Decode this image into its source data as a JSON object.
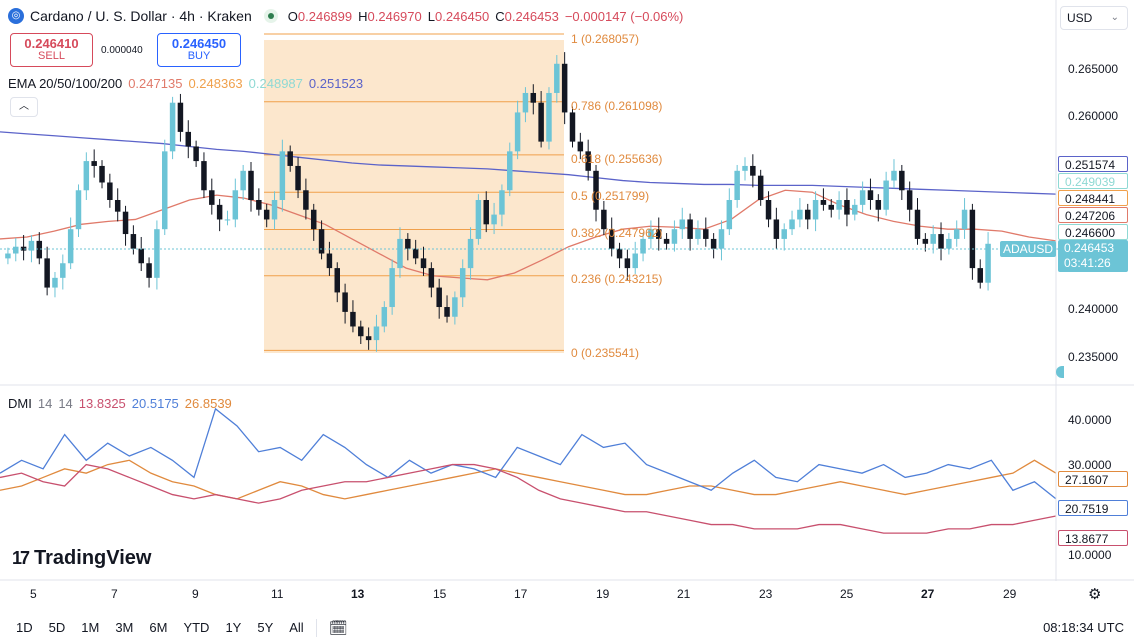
{
  "header": {
    "title": "Cardano / U. S. Dollar · 4h · Kraken",
    "o_label": "O",
    "o_value": "0.246899",
    "h_label": "H",
    "h_value": "0.246970",
    "l_label": "L",
    "l_value": "0.246450",
    "c_label": "C",
    "c_value": "0.246453",
    "change": "−0.000147 (−0.06%)",
    "currency": "USD"
  },
  "trade": {
    "sell_price": "0.246410",
    "sell_label": "SELL",
    "spread": "0.000040",
    "buy_price": "0.246450",
    "buy_label": "BUY"
  },
  "ema_legend": {
    "label": "EMA 20/50/100/200",
    "v20": "0.247135",
    "v50": "0.248363",
    "v100": "0.248987",
    "v200": "0.251523"
  },
  "dmi_legend": {
    "label": "DMI",
    "p1": "14",
    "p2": "14",
    "plus": "13.8325",
    "minus": "20.5175",
    "adx": "26.8539"
  },
  "price_axis": {
    "labels": [
      "0.265000",
      "0.260000",
      "0.240000",
      "0.235000"
    ],
    "tags": {
      "ema200": "0.251574",
      "ema100": "0.249039",
      "ema50": "0.248441",
      "ema20": "0.247206",
      "mid": "0.246600",
      "symbol": "ADAUSD",
      "last": "0.246453",
      "countdown": "03:41:26"
    }
  },
  "dmi_axis": {
    "labels": [
      "40.0000",
      "30.0000",
      "10.0000"
    ],
    "tags": {
      "adx": "27.1607",
      "minus": "20.7519",
      "plus": "13.8677"
    }
  },
  "fib_labels": [
    "1 (0.268057)",
    "0.786 (0.261098)",
    "0.618 (0.255636)",
    "0.5 (0.251799)",
    "0.382 (0.247962)",
    "0.236 (0.243215)",
    "0 (0.235541)"
  ],
  "time_axis": [
    "5",
    "7",
    "9",
    "11",
    "13",
    "15",
    "17",
    "19",
    "21",
    "23",
    "25",
    "27",
    "29"
  ],
  "bottom": {
    "timeframes": [
      "1D",
      "5D",
      "1M",
      "3M",
      "6M",
      "YTD",
      "1Y",
      "5Y",
      "All"
    ],
    "clock": "08:18:34 UTC"
  },
  "brand": {
    "name": "TradingView"
  },
  "colors": {
    "up": "#6cc4d6",
    "down": "#131722",
    "ema20": "#e07a6a",
    "ema50": "#f2b37b",
    "ema100": "#8fd9d4",
    "ema200": "#5b63c9",
    "fib_zone": "#fbe3c4",
    "fib_line": "#f0a04b",
    "dmi_plus": "#c8506e",
    "dmi_minus": "#4f7fd8",
    "adx": "#e08a3e"
  },
  "chart_data": {
    "type": "candlestick",
    "symbol": "ADAUSD",
    "interval": "4h",
    "x_tick_labels": [
      "5",
      "7",
      "9",
      "11",
      "13",
      "15",
      "17",
      "19",
      "21",
      "23",
      "25",
      "27",
      "29"
    ],
    "ylim": [
      0.2325,
      0.2695
    ],
    "fib_levels": [
      {
        "ratio": 1,
        "price": 0.268057
      },
      {
        "ratio": 0.786,
        "price": 0.261098
      },
      {
        "ratio": 0.618,
        "price": 0.255636
      },
      {
        "ratio": 0.5,
        "price": 0.251799
      },
      {
        "ratio": 0.382,
        "price": 0.247962
      },
      {
        "ratio": 0.236,
        "price": 0.243215
      },
      {
        "ratio": 0,
        "price": 0.235541
      }
    ],
    "close": [
      0.2455,
      0.2462,
      0.2458,
      0.2468,
      0.245,
      0.242,
      0.243,
      0.2445,
      0.248,
      0.252,
      0.255,
      0.2545,
      0.2528,
      0.251,
      0.2498,
      0.2475,
      0.246,
      0.2445,
      0.243,
      0.248,
      0.256,
      0.261,
      0.258,
      0.2565,
      0.255,
      0.252,
      0.2505,
      0.249,
      0.249,
      0.252,
      0.254,
      0.251,
      0.25,
      0.249,
      0.251,
      0.256,
      0.2545,
      0.252,
      0.25,
      0.248,
      0.2455,
      0.244,
      0.2415,
      0.2395,
      0.238,
      0.237,
      0.2366,
      0.238,
      0.24,
      0.244,
      0.247,
      0.246,
      0.245,
      0.244,
      0.242,
      0.24,
      0.239,
      0.241,
      0.244,
      0.247,
      0.251,
      0.2485,
      0.2495,
      0.252,
      0.256,
      0.26,
      0.262,
      0.261,
      0.257,
      0.262,
      0.265,
      0.26,
      0.257,
      0.256,
      0.254,
      0.25,
      0.248,
      0.246,
      0.245,
      0.244,
      0.2455,
      0.247,
      0.248,
      0.247,
      0.2465,
      0.248,
      0.249,
      0.247,
      0.248,
      0.247,
      0.246,
      0.248,
      0.251,
      0.254,
      0.2545,
      0.2535,
      0.251,
      0.249,
      0.247,
      0.248,
      0.249,
      0.25,
      0.249,
      0.251,
      0.2505,
      0.25,
      0.251,
      0.2495,
      0.2505,
      0.252,
      0.251,
      0.25,
      0.253,
      0.254,
      0.252,
      0.25,
      0.247,
      0.2465,
      0.2475,
      0.246,
      0.247,
      0.248,
      0.25,
      0.244,
      0.2425,
      0.2465
    ],
    "ema20": [
      0.247,
      0.2472,
      0.2478,
      0.2485,
      0.2488,
      0.249,
      0.25,
      0.251,
      0.2515,
      0.2512,
      0.2505,
      0.2495,
      0.2485,
      0.247,
      0.2455,
      0.244,
      0.2432,
      0.243,
      0.2428,
      0.2435,
      0.2448,
      0.2462,
      0.2472,
      0.248,
      0.2483,
      0.2482,
      0.248,
      0.249,
      0.251,
      0.252,
      0.2518,
      0.2505,
      0.2495,
      0.2488,
      0.2483,
      0.248,
      0.248,
      0.2478,
      0.2472,
      0.2468
    ],
    "ema200": [
      0.258,
      0.2578,
      0.2576,
      0.2574,
      0.2572,
      0.257,
      0.2568,
      0.2565,
      0.2562,
      0.256,
      0.2557,
      0.2554,
      0.2551,
      0.2548,
      0.2546,
      0.2545,
      0.2544,
      0.2543,
      0.2542,
      0.254,
      0.2538,
      0.2536,
      0.2533,
      0.253,
      0.2528,
      0.2527,
      0.2526,
      0.2526,
      0.2525,
      0.2525,
      0.2525,
      0.2524,
      0.2523,
      0.2522,
      0.2521,
      0.252,
      0.2519,
      0.2518,
      0.2517,
      0.2516
    ],
    "dmi_plus": [
      26,
      27,
      25,
      24,
      29,
      28,
      26,
      24,
      22,
      21,
      22,
      21,
      20,
      21,
      23,
      24,
      25,
      25,
      26,
      27,
      28,
      29,
      29,
      28,
      26,
      23,
      21,
      20,
      19,
      18,
      18,
      17,
      16,
      15,
      15,
      14,
      14,
      14,
      15,
      15,
      14,
      13,
      13,
      13,
      14,
      14,
      15,
      15,
      16,
      17
    ],
    "dmi_minus": [
      27,
      30,
      28,
      36,
      30,
      34,
      31,
      33,
      30,
      26,
      42,
      38,
      32,
      33,
      30,
      36,
      33,
      29,
      26,
      30,
      27,
      29,
      28,
      26,
      33,
      31,
      29,
      36,
      33,
      34,
      29,
      27,
      25,
      23,
      27,
      30,
      26,
      25,
      29,
      28,
      27,
      29,
      26,
      27,
      29,
      28,
      30,
      23,
      25,
      21
    ],
    "adx": [
      23,
      24,
      26,
      28,
      27,
      29,
      30,
      27,
      25,
      24,
      22,
      21,
      23,
      25,
      24,
      22,
      21,
      22,
      23,
      24,
      25,
      26,
      27,
      28,
      27,
      26,
      25,
      24,
      23,
      22,
      22,
      23,
      24,
      24,
      23,
      22,
      22,
      23,
      24,
      25,
      24,
      23,
      22,
      23,
      24,
      25,
      26,
      27,
      30,
      27
    ]
  }
}
